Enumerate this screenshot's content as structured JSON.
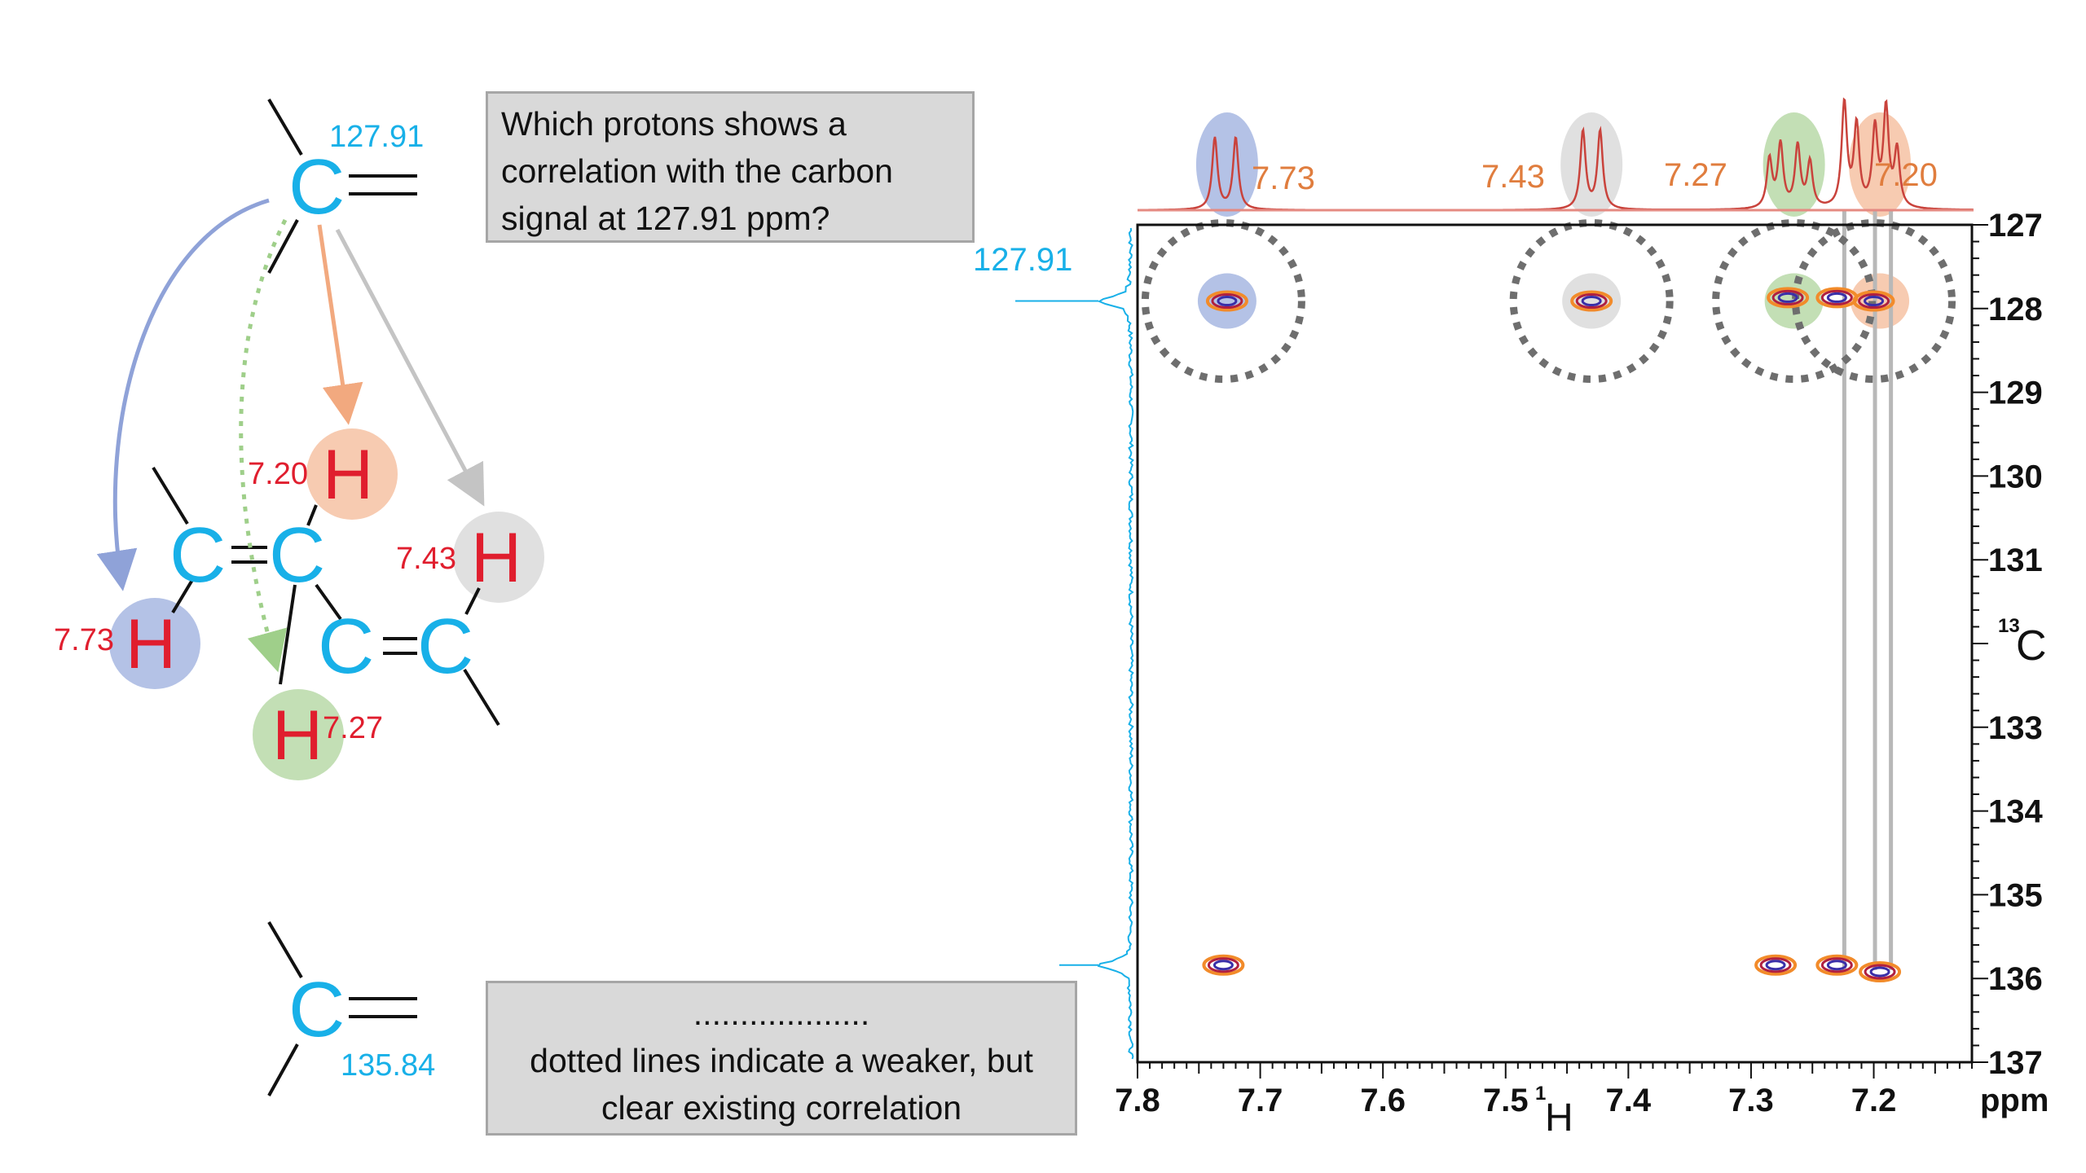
{
  "question": {
    "lines": [
      "Which protons shows a",
      "correlation with the carbon",
      "signal at 127.91 ppm?"
    ]
  },
  "note": {
    "lines": [
      "...................",
      "dotted lines indicate a weaker, but",
      "clear existing correlation"
    ]
  },
  "molecule": {
    "carbon_label": "C",
    "hydrogen_label": "H",
    "top_carbon_shift": "127.91",
    "bottom_carbon_shift": "135.84",
    "protons": [
      {
        "shift": "7.73",
        "color": "#b4c2e6"
      },
      {
        "shift": "7.20",
        "color": "#f7cbb1"
      },
      {
        "shift": "7.43",
        "color": "#e0e0e0"
      },
      {
        "shift": "7.27",
        "color": "#c3dfb5"
      }
    ],
    "colors": {
      "carbon": "#18b0e8",
      "hydrogen": "#e01e2e",
      "shift_label": "#e01e2e",
      "carbon_shift": "#18b0e8"
    }
  },
  "spectrum": {
    "top_trace_peaks": [
      "7.73",
      "7.43",
      "7.27",
      "7.20"
    ],
    "left_trace_label": "127.91"
  },
  "chart_data": {
    "type": "heatmap",
    "title": "",
    "xlabel_nucleus": "1",
    "xlabel_symbol": "H",
    "ylabel_nucleus": "13",
    "ylabel_symbol": "C",
    "x_unit": "ppm",
    "x_range": [
      7.8,
      7.12
    ],
    "y_range": [
      127,
      137
    ],
    "x_ticks": [
      "7.8",
      "7.7",
      "7.6",
      "7.5",
      "7.4",
      "7.3",
      "7.2"
    ],
    "y_ticks": [
      "127",
      "128",
      "129",
      "130",
      "131",
      "133",
      "134",
      "135",
      "136",
      "137"
    ],
    "y_tick_values": [
      127,
      128,
      129,
      130,
      131,
      133,
      134,
      135,
      136,
      137
    ],
    "highlight_colors": {
      "7.73": "#b4c2e6",
      "7.43": "#e0e0e0",
      "7.27": "#c3dfb5",
      "7.20": "#f7cbb1"
    },
    "cross_peaks": [
      {
        "h": 7.727,
        "c": 127.91
      },
      {
        "h": 7.43,
        "c": 127.91
      },
      {
        "h": 7.27,
        "c": 127.87
      },
      {
        "h": 7.23,
        "c": 127.87
      },
      {
        "h": 7.2,
        "c": 127.91
      },
      {
        "h": 7.73,
        "c": 135.84
      },
      {
        "h": 7.28,
        "c": 135.84
      },
      {
        "h": 7.23,
        "c": 135.84
      },
      {
        "h": 7.195,
        "c": 135.92
      }
    ],
    "circled_groups": [
      {
        "h": 7.73,
        "c": 127.91
      },
      {
        "h": 7.43,
        "c": 127.91
      },
      {
        "h": 7.265,
        "c": 127.91
      },
      {
        "h": 7.2,
        "c": 127.91
      }
    ],
    "guide_lines_h": [
      7.224,
      7.199,
      7.186
    ]
  }
}
